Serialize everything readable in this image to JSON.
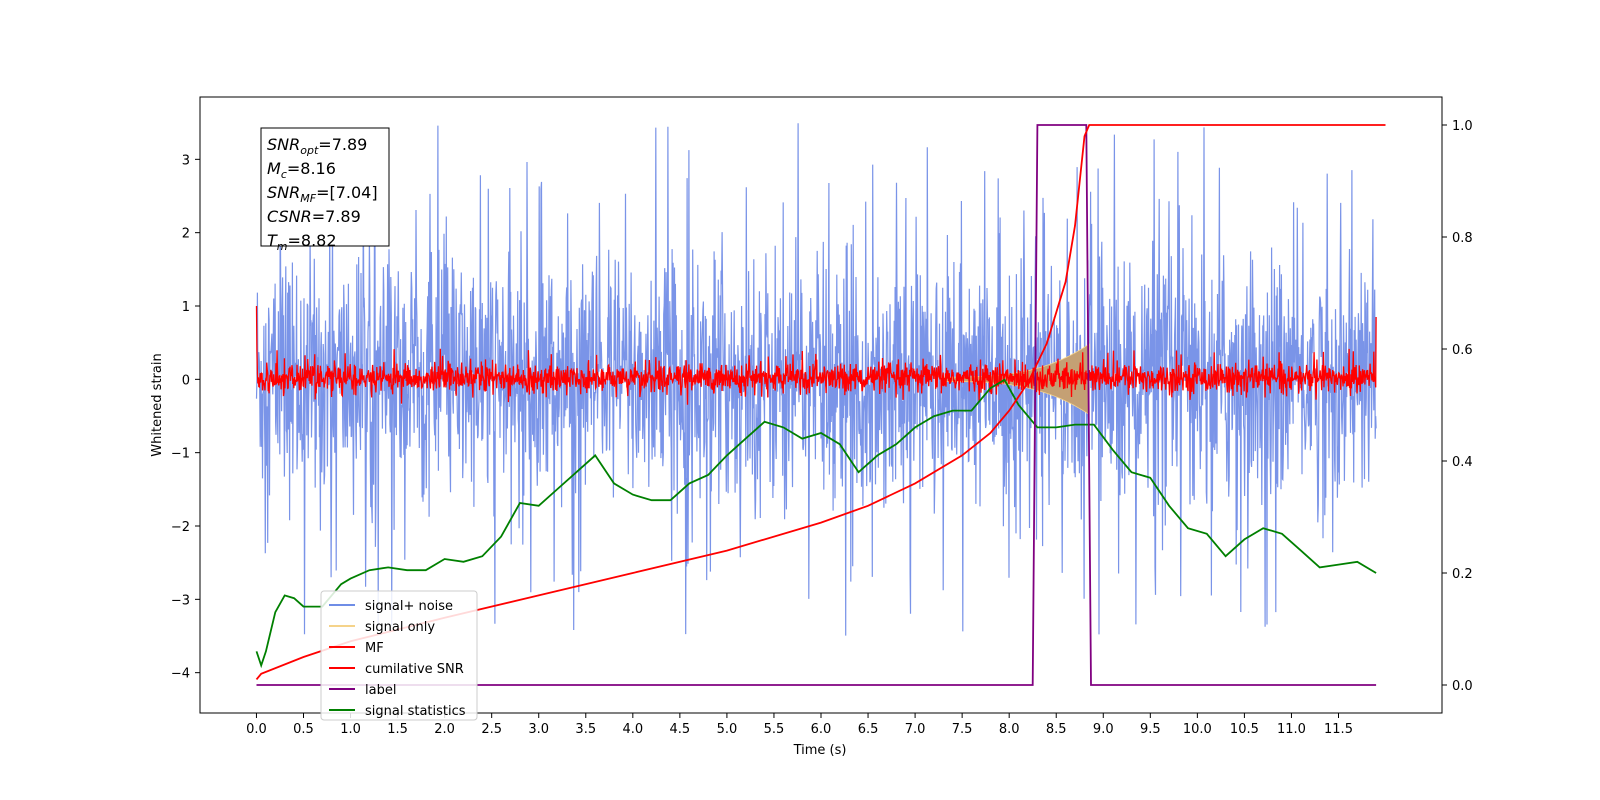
{
  "chart_data": {
    "type": "line",
    "xlabel": "Time (s)",
    "ylabel": "Whitened strain",
    "x_ticks": [
      "0.0",
      "0.5",
      "1.0",
      "1.5",
      "2.0",
      "2.5",
      "3.0",
      "3.5",
      "4.0",
      "4.5",
      "5.0",
      "5.5",
      "6.0",
      "6.5",
      "7.0",
      "7.5",
      "8.0",
      "8.5",
      "9.0",
      "9.5",
      "10.0",
      "10.5",
      "11.0",
      "11.5"
    ],
    "y_left_ticks": [
      "−4",
      "−3",
      "−2",
      "−1",
      "0",
      "1",
      "2",
      "3"
    ],
    "y_right_ticks": [
      "0.0",
      "0.2",
      "0.4",
      "0.6",
      "0.8",
      "1.0"
    ],
    "xlim": [
      -0.6,
      12.6
    ],
    "ylim_left": [
      -4.55,
      3.85
    ],
    "ylim_right": [
      -0.05,
      1.05
    ],
    "grid": false,
    "legend_position": "lower-left",
    "legend": [
      {
        "label": "signal+ noise",
        "color": "#6f8de6"
      },
      {
        "label": "signal only",
        "color": "#f5d38a"
      },
      {
        "label": "MF",
        "color": "#ff0000"
      },
      {
        "label": "cumilative SNR",
        "color": "#ff0000"
      },
      {
        "label": "label",
        "color": "#800080"
      },
      {
        "label": "signal statistics",
        "color": "#008000"
      }
    ],
    "annotations": [
      {
        "name": "SNR",
        "sub": "opt",
        "value": "=7.89"
      },
      {
        "name": "M",
        "sub": "c",
        "value": "=8.16"
      },
      {
        "name": "SNR",
        "sub": "MF",
        "value": "=[7.04]"
      },
      {
        "name": "CSNR",
        "sub": "",
        "value": "=7.89"
      },
      {
        "name": "T",
        "sub": "m",
        "value": "=8.82"
      }
    ],
    "series": [
      {
        "name": "signal statistics",
        "axis": "right",
        "x": [
          0.0,
          0.05,
          0.1,
          0.2,
          0.3,
          0.4,
          0.5,
          0.6,
          0.7,
          0.8,
          0.9,
          1.0,
          1.2,
          1.4,
          1.6,
          1.8,
          2.0,
          2.2,
          2.4,
          2.6,
          2.8,
          3.0,
          3.2,
          3.4,
          3.6,
          3.8,
          4.0,
          4.2,
          4.4,
          4.6,
          4.8,
          5.0,
          5.2,
          5.4,
          5.6,
          5.8,
          6.0,
          6.2,
          6.4,
          6.6,
          6.8,
          7.0,
          7.2,
          7.4,
          7.6,
          7.8,
          7.95,
          8.1,
          8.3,
          8.5,
          8.7,
          8.9,
          9.1,
          9.3,
          9.5,
          9.7,
          9.9,
          10.1,
          10.3,
          10.5,
          10.7,
          10.9,
          11.1,
          11.3,
          11.5,
          11.7,
          11.9
        ],
        "values": [
          0.06,
          0.035,
          0.06,
          0.13,
          0.16,
          0.155,
          0.14,
          0.14,
          0.14,
          0.16,
          0.18,
          0.19,
          0.205,
          0.21,
          0.205,
          0.205,
          0.225,
          0.22,
          0.23,
          0.265,
          0.325,
          0.32,
          0.35,
          0.38,
          0.41,
          0.36,
          0.34,
          0.33,
          0.33,
          0.36,
          0.375,
          0.41,
          0.44,
          0.47,
          0.46,
          0.44,
          0.45,
          0.43,
          0.38,
          0.41,
          0.43,
          0.46,
          0.48,
          0.49,
          0.49,
          0.53,
          0.545,
          0.5,
          0.46,
          0.46,
          0.465,
          0.465,
          0.42,
          0.38,
          0.37,
          0.32,
          0.28,
          0.27,
          0.23,
          0.26,
          0.28,
          0.27,
          0.24,
          0.21,
          0.215,
          0.22,
          0.2
        ]
      },
      {
        "name": "label",
        "axis": "right",
        "x": [
          0.0,
          8.25,
          8.3,
          8.82,
          8.87,
          11.9
        ],
        "values": [
          0.0,
          0.0,
          1.0,
          1.0,
          0.0,
          0.0
        ]
      },
      {
        "name": "cumilative SNR",
        "axis": "right",
        "x": [
          0.0,
          0.05,
          0.5,
          1.0,
          2.0,
          3.0,
          4.0,
          5.0,
          6.0,
          6.5,
          7.0,
          7.5,
          7.8,
          8.0,
          8.2,
          8.4,
          8.6,
          8.7,
          8.8,
          8.85,
          12.0
        ],
        "values": [
          0.01,
          0.02,
          0.05,
          0.078,
          0.12,
          0.16,
          0.2,
          0.24,
          0.29,
          0.32,
          0.36,
          0.41,
          0.45,
          0.49,
          0.54,
          0.61,
          0.72,
          0.82,
          0.98,
          1.0,
          1.0
        ]
      }
    ],
    "noise_band": {
      "name": "signal+ noise",
      "axis": "left",
      "x_range": [
        0.0,
        11.9
      ],
      "typical_range": [
        -1.5,
        1.5
      ],
      "peak_range": [
        -3.6,
        3.55
      ]
    },
    "mf_band": {
      "name": "MF",
      "axis": "left",
      "x_range": [
        0.0,
        11.9
      ],
      "typical_range": [
        -0.2,
        0.25
      ],
      "peak_range": [
        -0.35,
        0.45
      ]
    },
    "signal_only_chirp": {
      "name": "signal only",
      "axis": "left",
      "x_range": [
        7.3,
        8.85
      ],
      "max_amplitude": 0.45
    },
    "colors": {
      "noise": "#7a94e8",
      "signal_only": "#f5d38a",
      "chirp_fill": "#c4a074",
      "mf": "#ff0000",
      "csnr": "#ff0000",
      "label": "#800080",
      "stats": "#008000"
    }
  }
}
